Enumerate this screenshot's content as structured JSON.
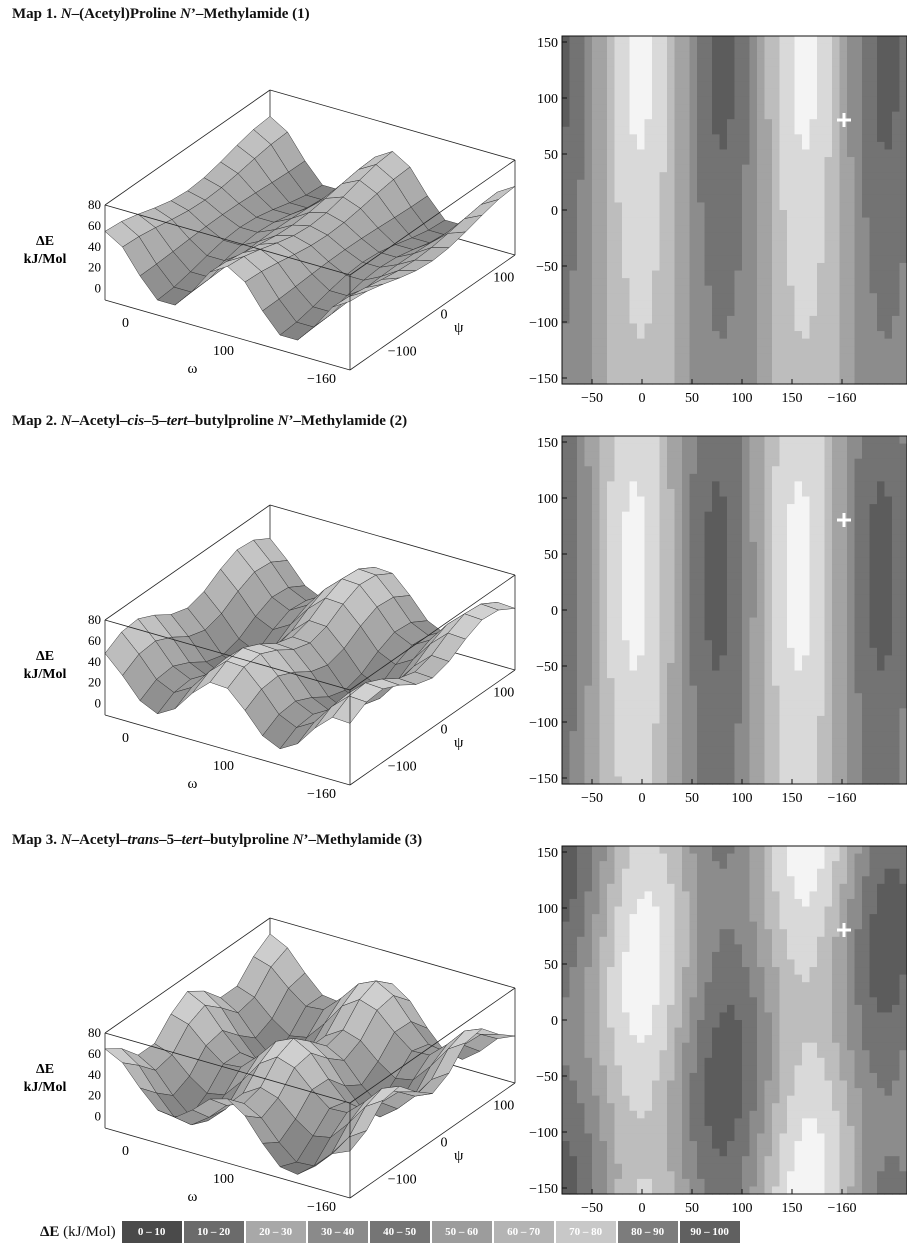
{
  "maps": [
    {
      "label": "Map 1.",
      "title_parts": [
        {
          "text": "N",
          "italic": true
        },
        {
          "text": "–(Acetyl)Proline ",
          "italic": false
        },
        {
          "text": "N",
          "italic": true
        },
        {
          "text": "’–Methylamide (1)",
          "italic": false
        }
      ]
    },
    {
      "label": "Map 2.",
      "title_parts": [
        {
          "text": "N",
          "italic": true
        },
        {
          "text": "–Acetyl–",
          "italic": false
        },
        {
          "text": "cis",
          "italic": true
        },
        {
          "text": "–5–",
          "italic": false
        },
        {
          "text": "tert",
          "italic": true
        },
        {
          "text": "–butylproline ",
          "italic": false
        },
        {
          "text": "N",
          "italic": true
        },
        {
          "text": "’–Methylamide (2)",
          "italic": false
        }
      ]
    },
    {
      "label": "Map 3.",
      "title_parts": [
        {
          "text": "N",
          "italic": true
        },
        {
          "text": "–Acetyl–",
          "italic": false
        },
        {
          "text": "trans",
          "italic": true
        },
        {
          "text": "–5–",
          "italic": false
        },
        {
          "text": "tert",
          "italic": true
        },
        {
          "text": "–butylproline ",
          "italic": false
        },
        {
          "text": "N",
          "italic": true
        },
        {
          "text": "’–Methylamide (3)",
          "italic": false
        }
      ]
    }
  ],
  "surface_axes": {
    "z_label_line1": "ΔE",
    "z_label_line2": "kJ/Mol",
    "z_ticks": [
      "80",
      "60",
      "40",
      "20",
      "0"
    ],
    "omega_label": "ω",
    "omega_ticks": [
      "0",
      "100",
      "−160"
    ],
    "psi_label": "ψ",
    "psi_ticks": [
      "100",
      "0",
      "−100"
    ]
  },
  "contour_axes": {
    "y_ticks": [
      "150",
      "100",
      "50",
      "0",
      "−50",
      "−100",
      "−150"
    ],
    "x_ticks": [
      "−50",
      "0",
      "50",
      "100",
      "150",
      "−160"
    ]
  },
  "legend": {
    "title": "ΔE",
    "unit": "(kJ/Mol)",
    "bins": [
      {
        "label": "0 – 10",
        "color": "#4a4a4a"
      },
      {
        "label": "10 – 20",
        "color": "#6b6b6b"
      },
      {
        "label": "20 – 30",
        "color": "#a8a8a8"
      },
      {
        "label": "30 – 40",
        "color": "#8a8a8a"
      },
      {
        "label": "40 – 50",
        "color": "#757575"
      },
      {
        "label": "50 – 60",
        "color": "#9c9c9c"
      },
      {
        "label": "60 – 70",
        "color": "#b4b4b4"
      },
      {
        "label": "70 – 80",
        "color": "#c8c8c8"
      },
      {
        "label": "80 – 90",
        "color": "#7c7c7c"
      },
      {
        "label": "90 – 100",
        "color": "#606060"
      }
    ]
  }
}
